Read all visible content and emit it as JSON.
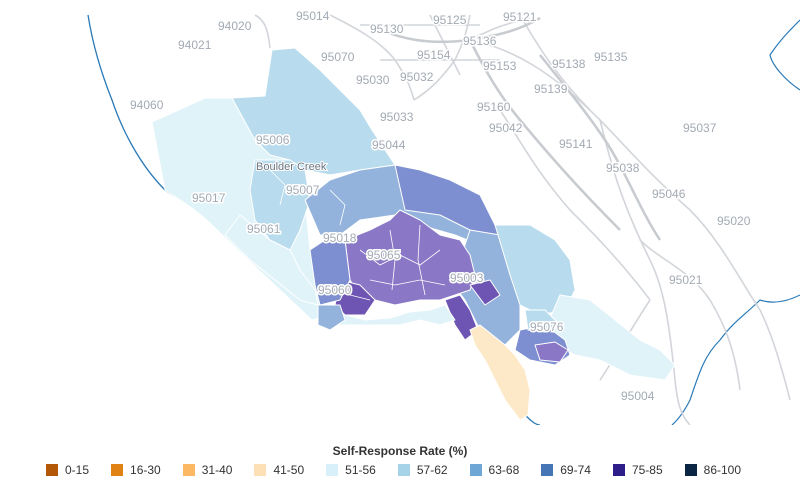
{
  "map": {
    "zip_labels": [
      {
        "text": "95014"
      },
      {
        "text": "94020"
      },
      {
        "text": "95125"
      },
      {
        "text": "95121"
      },
      {
        "text": "95130"
      },
      {
        "text": "94021"
      },
      {
        "text": "95136"
      },
      {
        "text": "95070"
      },
      {
        "text": "95154"
      },
      {
        "text": "95030"
      },
      {
        "text": "95032"
      },
      {
        "text": "95153"
      },
      {
        "text": "95138"
      },
      {
        "text": "95135"
      },
      {
        "text": "95139"
      },
      {
        "text": "94060"
      },
      {
        "text": "95160"
      },
      {
        "text": "95033"
      },
      {
        "text": "95042"
      },
      {
        "text": "95037"
      },
      {
        "text": "95006"
      },
      {
        "text": "95044"
      },
      {
        "text": "95141"
      },
      {
        "text": "95038"
      },
      {
        "text": "95007"
      },
      {
        "text": "95017"
      },
      {
        "text": "95046"
      },
      {
        "text": "95020"
      },
      {
        "text": "95061"
      },
      {
        "text": "95018"
      },
      {
        "text": "95065"
      },
      {
        "text": "95003"
      },
      {
        "text": "95021"
      },
      {
        "text": "95060"
      },
      {
        "text": "95076"
      },
      {
        "text": "95004"
      }
    ],
    "place_labels": [
      {
        "text": "Boulder Creek"
      }
    ],
    "colors": {
      "c51_56": "#e0f3f9",
      "c57_62": "#b8dced",
      "c63_68": "#94b3dc",
      "c69_74": "#7d8fd0",
      "c75_85": "#8a78c6",
      "c75_85_dark": "#6e55b3",
      "c41_50": "#fde9c8"
    }
  },
  "legend": {
    "title": "Self-Response Rate (%)",
    "items": [
      {
        "label": "0-15",
        "color": "#b35806"
      },
      {
        "label": "16-30",
        "color": "#e08214"
      },
      {
        "label": "31-40",
        "color": "#fdb863"
      },
      {
        "label": "41-50",
        "color": "#fee0b6"
      },
      {
        "label": "51-56",
        "color": "#d8f0f9"
      },
      {
        "label": "57-62",
        "color": "#a6d3e8"
      },
      {
        "label": "63-68",
        "color": "#6ea6d5"
      },
      {
        "label": "69-74",
        "color": "#4575b4"
      },
      {
        "label": "75-85",
        "color": "#2d1e8a"
      },
      {
        "label": "86-100",
        "color": "#0b2545"
      }
    ]
  }
}
